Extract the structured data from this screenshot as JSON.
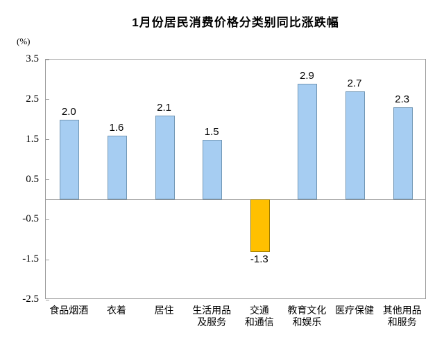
{
  "title": "1月份居民消费价格分类别同比涨跌幅",
  "y_unit_label": "(%)",
  "chart_data": {
    "type": "bar",
    "title": "1月份居民消费价格分类别同比涨跌幅",
    "ylabel": "(%)",
    "xlabel": "",
    "ylim": [
      -2.5,
      3.5
    ],
    "ytick_interval": 1.0,
    "yticks": [
      3.5,
      2.5,
      1.5,
      0.5,
      -0.5,
      -1.5,
      -2.5
    ],
    "grid": false,
    "legend": false,
    "categories": [
      "食品烟酒",
      "衣着",
      "居住",
      "生活用品及服务",
      "交通和通信",
      "教育文化和娱乐",
      "医疗保健",
      "其他用品和服务"
    ],
    "category_display_lines": [
      [
        "食品烟酒"
      ],
      [
        "衣着"
      ],
      [
        "居住"
      ],
      [
        "生活用品",
        "及服务"
      ],
      [
        "交通",
        "和通信"
      ],
      [
        "教育文化",
        "和娱乐"
      ],
      [
        "医疗保健"
      ],
      [
        "其他用品",
        "和服务"
      ]
    ],
    "values": [
      2.0,
      1.6,
      2.1,
      1.5,
      -1.3,
      2.9,
      2.7,
      2.3
    ],
    "colors": {
      "positive_fill": "#A6CDF2",
      "positive_border": "#7297B5",
      "negative_fill": "#FFC000",
      "negative_border": "#9C7A00",
      "axis": "#9c9c9c",
      "zero_line": "#8c8c8c",
      "text": "#000000"
    }
  }
}
